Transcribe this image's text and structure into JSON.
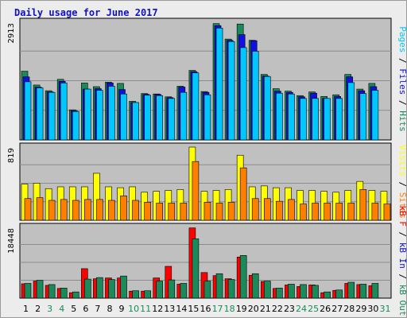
{
  "title": "Daily usage for June 2017",
  "colors": {
    "hits": "#1b8a5a",
    "files": "#1010e0",
    "pages": "#00c8ff",
    "visits": "#ffff00",
    "sites": "#ff8000",
    "kb_f": "#ff0000",
    "kb_in": "#1010c8",
    "kb_out": "#1b8a5a",
    "weekday_label": "#000000",
    "weekend_label": "#1b8a5a",
    "panel": "#c0c0c0"
  },
  "chart_data": [
    {
      "type": "bar",
      "panel": "hits-files-pages",
      "ylabel_parts": [
        {
          "text": "Pages",
          "color": "#00c8ff"
        },
        {
          "text": " / ",
          "color": "#000000"
        },
        {
          "text": "Files",
          "color": "#1010e0"
        },
        {
          "text": " / ",
          "color": "#000000"
        },
        {
          "text": "Hits",
          "color": "#1b8a5a"
        }
      ],
      "ymax_label": "2913",
      "ylim": [
        0,
        2913
      ],
      "categories": [
        "1",
        "2",
        "3",
        "4",
        "5",
        "6",
        "7",
        "8",
        "9",
        "10",
        "11",
        "12",
        "13",
        "14",
        "15",
        "16",
        "17",
        "18",
        "19",
        "20",
        "21",
        "22",
        "23",
        "24",
        "25",
        "26",
        "27",
        "28",
        "29",
        "30",
        "31"
      ],
      "series": [
        {
          "name": "Hits",
          "values": [
            1690,
            1350,
            1210,
            1490,
            740,
            1400,
            1310,
            1420,
            1390,
            950,
            1140,
            1130,
            1060,
            1320,
            1710,
            1190,
            2860,
            2480,
            2850,
            2450,
            1610,
            1260,
            1200,
            1090,
            1180,
            1070,
            1110,
            1610,
            1250,
            1390,
            0
          ]
        },
        {
          "name": "Files",
          "values": [
            1550,
            1300,
            1180,
            1440,
            720,
            1250,
            1260,
            1400,
            1240,
            920,
            1120,
            1120,
            1040,
            1300,
            1680,
            1170,
            2810,
            2450,
            2590,
            2440,
            1570,
            1200,
            1170,
            1060,
            1150,
            1020,
            1070,
            1550,
            1210,
            1310,
            0
          ]
        },
        {
          "name": "Pages",
          "values": [
            1430,
            1280,
            1170,
            1400,
            700,
            1250,
            1220,
            1320,
            1130,
            920,
            1100,
            1090,
            1020,
            1170,
            1650,
            1110,
            2750,
            2420,
            2270,
            2180,
            1560,
            1150,
            1130,
            1020,
            1020,
            1020,
            1020,
            1410,
            1140,
            1220,
            0
          ]
        }
      ]
    },
    {
      "type": "bar",
      "panel": "visits-sites",
      "ylabel_parts": [
        {
          "text": "Visits",
          "color": "#ffff00"
        },
        {
          "text": " / ",
          "color": "#000000"
        },
        {
          "text": "Sites",
          "color": "#ff8000"
        }
      ],
      "ymax_label": "819",
      "ylim": [
        0,
        819
      ],
      "categories": [
        "1",
        "2",
        "3",
        "4",
        "5",
        "6",
        "7",
        "8",
        "9",
        "10",
        "11",
        "12",
        "13",
        "14",
        "15",
        "16",
        "17",
        "18",
        "19",
        "20",
        "21",
        "22",
        "23",
        "24",
        "25",
        "26",
        "27",
        "28",
        "29",
        "30",
        "31"
      ],
      "series": [
        {
          "name": "Visits",
          "values": [
            400,
            410,
            350,
            370,
            370,
            370,
            520,
            370,
            360,
            370,
            310,
            320,
            330,
            340,
            810,
            320,
            330,
            340,
            720,
            370,
            380,
            360,
            360,
            330,
            330,
            320,
            310,
            330,
            430,
            330,
            320
          ]
        },
        {
          "name": "Sites",
          "values": [
            240,
            250,
            220,
            230,
            220,
            230,
            230,
            220,
            270,
            220,
            200,
            190,
            190,
            190,
            650,
            200,
            190,
            200,
            580,
            240,
            240,
            210,
            230,
            180,
            190,
            190,
            190,
            190,
            340,
            190,
            180
          ]
        }
      ]
    },
    {
      "type": "bar",
      "panel": "kbytes",
      "ylabel_parts": [
        {
          "text": "kB F",
          "color": "#ff0000"
        },
        {
          "text": " / ",
          "color": "#000000"
        },
        {
          "text": "kB In",
          "color": "#1010c8"
        },
        {
          "text": " / ",
          "color": "#000000"
        },
        {
          "text": "kB Out",
          "color": "#1b8a5a"
        }
      ],
      "ymax_label": "18448",
      "ylim": [
        0,
        18448
      ],
      "categories": [
        "1",
        "2",
        "3",
        "4",
        "5",
        "6",
        "7",
        "8",
        "9",
        "10",
        "11",
        "12",
        "13",
        "14",
        "15",
        "16",
        "17",
        "18",
        "19",
        "20",
        "21",
        "22",
        "23",
        "24",
        "25",
        "26",
        "27",
        "28",
        "29",
        "30",
        "31"
      ],
      "series": [
        {
          "name": "kB F",
          "values": [
            3700,
            4400,
            3300,
            2500,
            1400,
            7600,
            5000,
            5200,
            5200,
            1800,
            1800,
            5200,
            8200,
            3600,
            18100,
            6600,
            5800,
            5000,
            10600,
            5900,
            4300,
            2500,
            3400,
            3000,
            3400,
            1400,
            2000,
            3800,
            3500,
            3200,
            0
          ]
        },
        {
          "name": "kB Out",
          "values": [
            3800,
            4600,
            3500,
            2600,
            1600,
            4900,
            5300,
            4800,
            5700,
            1900,
            1900,
            4400,
            4700,
            3800,
            15300,
            4400,
            6300,
            4800,
            11000,
            6300,
            4400,
            2600,
            3600,
            3500,
            3300,
            1600,
            2100,
            4100,
            3600,
            3800,
            0
          ]
        }
      ]
    }
  ],
  "x_axis": {
    "labels": [
      "1",
      "2",
      "3",
      "4",
      "5",
      "6",
      "7",
      "8",
      "9",
      "10",
      "11",
      "12",
      "13",
      "14",
      "15",
      "16",
      "17",
      "18",
      "19",
      "20",
      "21",
      "22",
      "23",
      "24",
      "25",
      "26",
      "27",
      "28",
      "29",
      "30",
      "31"
    ],
    "weekend_days": [
      "3",
      "4",
      "10",
      "11",
      "17",
      "18",
      "24",
      "25",
      "31"
    ]
  }
}
